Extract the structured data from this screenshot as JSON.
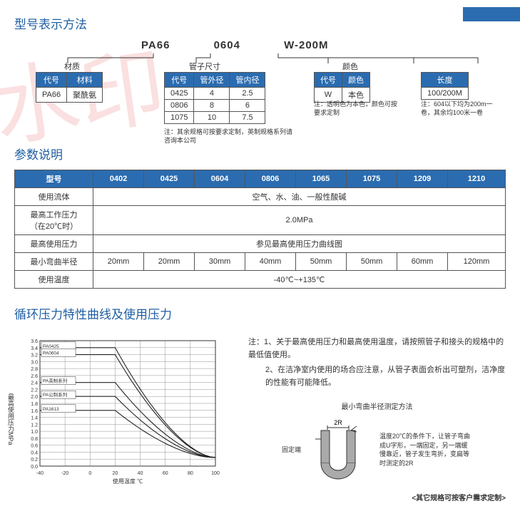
{
  "watermark_text": "水印",
  "titles": {
    "model": "型号表示方法",
    "params": "参数说明",
    "curve": "循环压力特性曲线及使用压力"
  },
  "model_code": {
    "a": "PA66",
    "b": "0604",
    "c": "W-200M"
  },
  "labels": {
    "material": "材质",
    "tube_size": "管子尺寸",
    "color": "颜色",
    "length": "长度",
    "code": "代号",
    "mat": "材料",
    "od": "管外径",
    "id": "管内径",
    "col": "颜色"
  },
  "material_table": {
    "code": "PA66",
    "name": "聚酰氨"
  },
  "size_table": {
    "rows": [
      {
        "code": "0425",
        "od": "4",
        "id": "2.5"
      },
      {
        "code": "0806",
        "od": "8",
        "id": "6"
      },
      {
        "code": "1075",
        "od": "10",
        "id": "7.5"
      }
    ]
  },
  "color_table": {
    "code": "W",
    "name": "本色"
  },
  "length_table": {
    "val": "100/200M"
  },
  "notes": {
    "size": "注：其余规格可按要求定制，英制规格系列请咨询本公司",
    "color": "注：透明色为本色，颜色可按要求定制",
    "length": "注：604以下均为200m一卷，其余均100米一卷"
  },
  "param_table": {
    "header": [
      "型号",
      "0402",
      "0425",
      "0604",
      "0806",
      "1065",
      "1075",
      "1209",
      "1210"
    ],
    "rows": [
      {
        "label": "使用流体",
        "span": "空气、水、油、一般性酸碱"
      },
      {
        "label": "最高工作压力\n（在20℃时）",
        "span": "2.0MPa"
      },
      {
        "label": "最高使用压力",
        "span": "参见最高使用压力曲线图"
      },
      {
        "label": "最小弯曲半径",
        "cells": [
          "20mm",
          "20mm",
          "30mm",
          "40mm",
          "50mm",
          "50mm",
          "60mm",
          "120mm"
        ]
      },
      {
        "label": "使用温度",
        "span": "-40℃~+135℃"
      }
    ]
  },
  "chart": {
    "y_ticks": [
      "3.6",
      "3.4",
      "3.2",
      "3.0",
      "2.8",
      "2.6",
      "2.4",
      "2.2",
      "2.0",
      "1.8",
      "1.6",
      "1.4",
      "1.2",
      "1.0",
      "0.8",
      "0.6",
      "0.4",
      "0.2",
      "0.0"
    ],
    "x_ticks": [
      "-40",
      "-20",
      "0",
      "20",
      "40",
      "60",
      "80",
      "100"
    ],
    "y_label": "最高使用压力MPa",
    "x_label": "使用温度 ℃",
    "series_labels": [
      "PA0425",
      "PA0604",
      "PA英制系列",
      "PA公制系列",
      "PA1613"
    ],
    "grid_color": "#777",
    "bg_color": "#ffffff",
    "line_color": "#222",
    "curves": [
      {
        "startY": 3.4,
        "breakX": 20
      },
      {
        "startY": 3.2,
        "breakX": 20
      },
      {
        "startY": 2.4,
        "breakX": 20
      },
      {
        "startY": 2.0,
        "breakX": 20
      },
      {
        "startY": 1.6,
        "breakX": 20
      }
    ]
  },
  "right_notes": {
    "hdr": "注：",
    "n1": "1、关于最高使用压力和最高使用温度，请按照管子和接头的规格中的最低值使用。",
    "n2": "2、在洁净室内使用的场合应注意，从管子表面会析出可塑剂，洁净度的性能有可能降低。",
    "bend_title": "最小弯曲半径测定方法",
    "bend_2r": "2R",
    "bend_fixed": "固定端",
    "bend_text": "温度20℃的条件下，让管子弯曲成U字形，一端固定，另一端缓慢靠近，管子发生弯折，变扁等时测定的2R"
  },
  "footer": "<其它规格可按客户需求定制>"
}
